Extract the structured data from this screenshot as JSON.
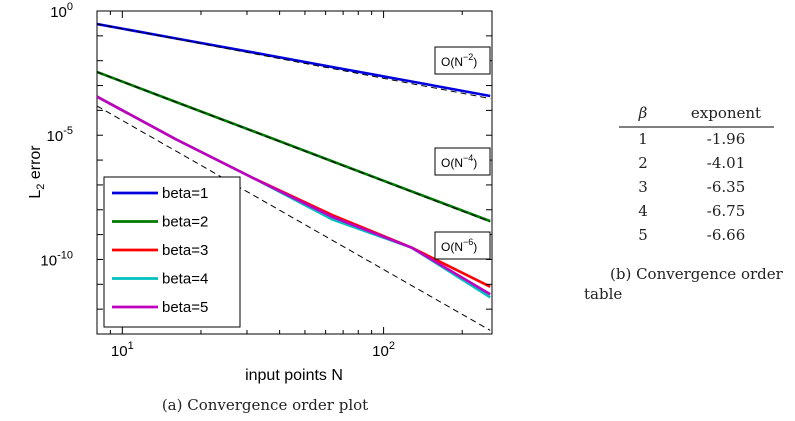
{
  "chart_data": {
    "type": "line",
    "xscale": "log",
    "yscale": "log",
    "xlim": [
      8,
      260
    ],
    "ylim": [
      1e-13,
      1
    ],
    "xlabel": "input points N",
    "ylabel_main": "L",
    "ylabel_sub": "2",
    "ylabel_rest": " error",
    "xticks": [
      {
        "value": 10,
        "base": "10",
        "exp": "1"
      },
      {
        "value": 100,
        "base": "10",
        "exp": "2"
      }
    ],
    "yticks": [
      {
        "value": 1,
        "base": "10",
        "exp": "0"
      },
      {
        "value": 1e-05,
        "base": "10",
        "exp": "-5"
      },
      {
        "value": 1e-10,
        "base": "10",
        "exp": "-10"
      }
    ],
    "series": [
      {
        "name": "beta=1",
        "color": "#0000dd",
        "x": [
          8,
          16,
          32,
          64,
          128,
          256
        ],
        "y": [
          0.3,
          0.079,
          0.021,
          0.0055,
          0.00145,
          0.00038
        ]
      },
      {
        "name": "beta=2",
        "color": "#007a00",
        "x": [
          8,
          16,
          32,
          64,
          128,
          256
        ],
        "y": [
          0.0035,
          0.00022,
          1.4e-05,
          8.8e-07,
          5.5e-08,
          3.5e-09
        ]
      },
      {
        "name": "beta=3",
        "color": "#ff0000",
        "x": [
          8,
          16,
          32,
          64,
          128,
          256
        ],
        "y": [
          0.00036,
          7e-06,
          1.8e-07,
          6e-09,
          3e-10,
          8e-12
        ]
      },
      {
        "name": "beta=4",
        "color": "#00bfbf",
        "x": [
          8,
          16,
          32,
          64,
          128,
          256
        ],
        "y": [
          0.00036,
          7e-06,
          1.8e-07,
          4e-09,
          3e-10,
          3e-12
        ]
      },
      {
        "name": "beta=5",
        "color": "#bf00bf",
        "x": [
          8,
          16,
          32,
          64,
          128,
          256
        ],
        "y": [
          0.00036,
          7e-06,
          1.8e-07,
          5e-09,
          3e-10,
          4e-12
        ]
      }
    ],
    "reference_lines": [
      {
        "label_base": "O(N",
        "label_exp": "−2",
        "label_close": ")",
        "x": [
          8,
          256
        ],
        "y": [
          0.3,
          0.0003
        ]
      },
      {
        "label_base": "O(N",
        "label_exp": "−4",
        "label_close": ")",
        "x": [
          8,
          256
        ],
        "y": [
          0.0035,
          3.3e-09
        ]
      },
      {
        "label_base": "O(N",
        "label_exp": "−6",
        "label_close": ")",
        "x": [
          8,
          256
        ],
        "y": [
          0.00015,
          1.4e-13
        ]
      }
    ],
    "grid": false,
    "legend_position": "bottom-left"
  },
  "caption_a": "(a) Convergence order plot",
  "table": {
    "header_beta": "β",
    "header_exponent": "exponent",
    "rows": [
      {
        "beta": "1",
        "exponent": "-1.96"
      },
      {
        "beta": "2",
        "exponent": "-4.01"
      },
      {
        "beta": "3",
        "exponent": "-6.35"
      },
      {
        "beta": "4",
        "exponent": "-6.75"
      },
      {
        "beta": "5",
        "exponent": "-6.66"
      }
    ],
    "caption_line1": "(b)  Convergence order",
    "caption_line2": "table"
  }
}
